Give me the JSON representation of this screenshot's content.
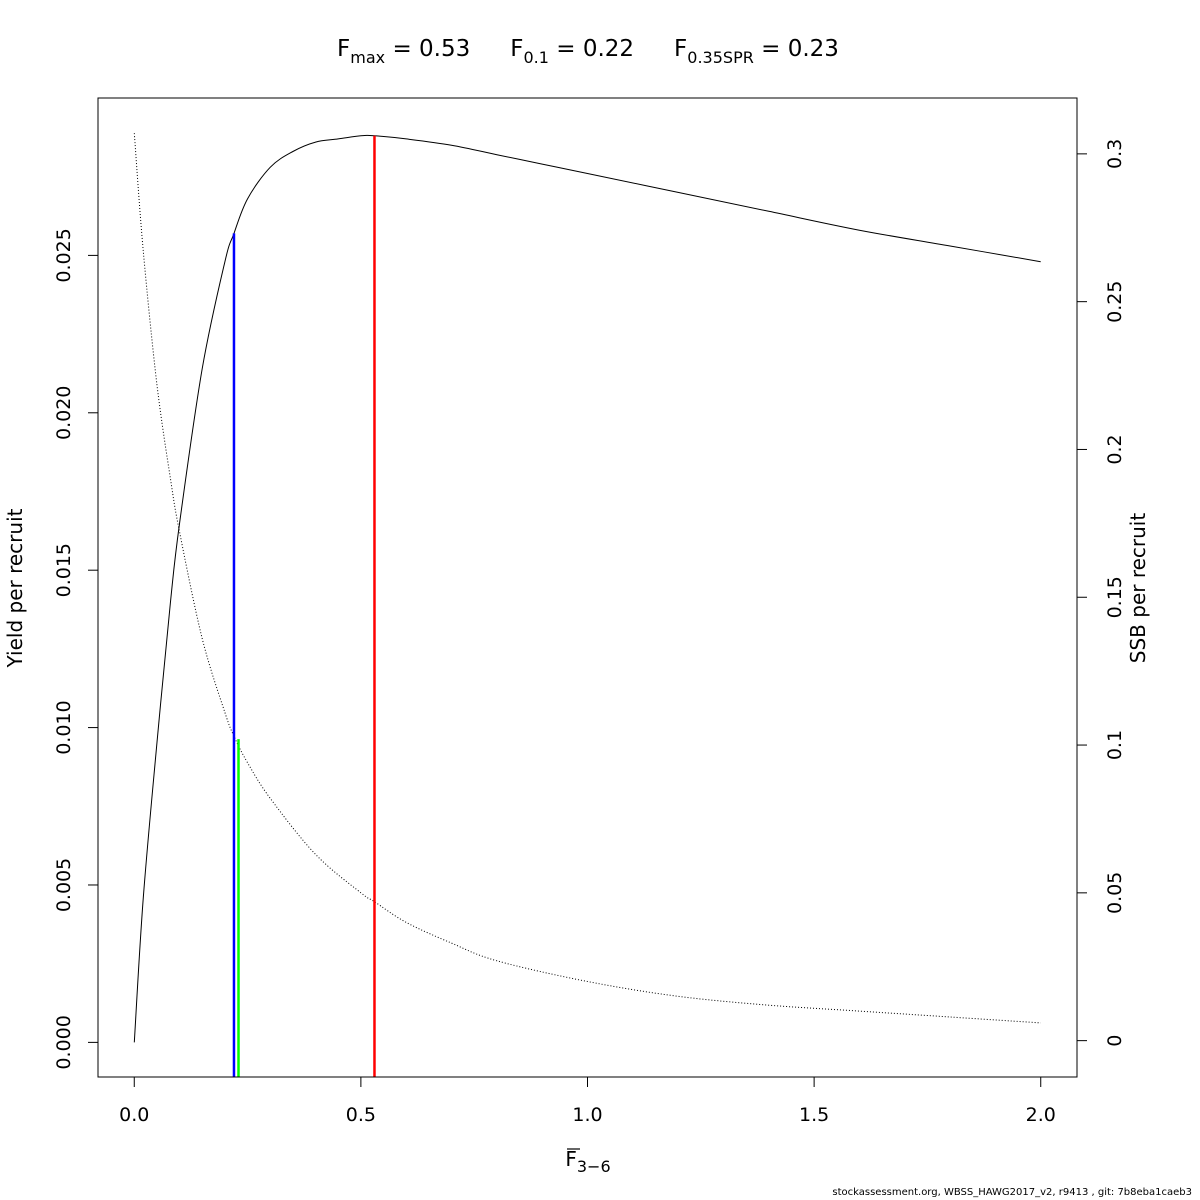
{
  "title": {
    "fmax": {
      "main": "F",
      "sub": "max",
      "value": " = 0.53"
    },
    "f01": {
      "main": "F",
      "sub": "0.1",
      "value": " = 0.22"
    },
    "f035": {
      "main": "F",
      "sub": "0.35SPR",
      "value": " = 0.23"
    }
  },
  "footer": "stockassessment.org, WBSS_HAWG2017_v2, r9413 , git: 7b8eba1caeb3",
  "chart_data": {
    "type": "line",
    "x_label": {
      "main": "F",
      "sub": "3−6",
      "overline": true
    },
    "y_label_left": "Yield per recruit",
    "y_label_right": "SSB per recruit",
    "x_range": [
      -0.08,
      2.08
    ],
    "y_left_range": [
      -0.0011,
      0.03
    ],
    "y_right_range": [
      -0.0123,
      0.3189
    ],
    "x_ticks": [
      0,
      0.5,
      1,
      1.5,
      2
    ],
    "x_tick_labels": [
      "0.0",
      "0.5",
      "1.0",
      "1.5",
      "2.0"
    ],
    "y_left_ticks": [
      0,
      0.005,
      0.01,
      0.015,
      0.02,
      0.025
    ],
    "y_left_tick_labels": [
      "0.000",
      "0.005",
      "0.010",
      "0.015",
      "0.020",
      "0.025"
    ],
    "y_right_ticks": [
      0,
      0.05,
      0.1,
      0.15,
      0.2,
      0.25,
      0.3
    ],
    "y_right_tick_labels": [
      "0",
      "0.05",
      "0.1",
      "0.15",
      "0.2",
      "0.25",
      "0.3"
    ],
    "series": [
      {
        "axis": "left",
        "style": "solid",
        "color": "#000000",
        "x": [
          0,
          0.02,
          0.05,
          0.08,
          0.1,
          0.15,
          0.2,
          0.22,
          0.25,
          0.3,
          0.35,
          0.4,
          0.45,
          0.5,
          0.53,
          0.6,
          0.7,
          0.8,
          0.9,
          1.0,
          1.2,
          1.4,
          1.6,
          1.8,
          2.0
        ],
        "y": [
          0,
          0.0046,
          0.0095,
          0.014,
          0.0165,
          0.0214,
          0.0248,
          0.0257,
          0.0268,
          0.0278,
          0.0283,
          0.0286,
          0.0287,
          0.0288,
          0.0288,
          0.0287,
          0.0285,
          0.0282,
          0.0279,
          0.0276,
          0.027,
          0.0264,
          0.0258,
          0.0253,
          0.0248
        ]
      },
      {
        "axis": "right",
        "style": "dotted",
        "color": "#000000",
        "x": [
          0,
          0.02,
          0.05,
          0.08,
          0.1,
          0.15,
          0.2,
          0.22,
          0.25,
          0.3,
          0.4,
          0.5,
          0.53,
          0.6,
          0.7,
          0.8,
          1.0,
          1.2,
          1.4,
          1.6,
          1.8,
          2.0
        ],
        "y": [
          0.307,
          0.267,
          0.222,
          0.19,
          0.172,
          0.136,
          0.111,
          0.103,
          0.094,
          0.082,
          0.063,
          0.05,
          0.047,
          0.04,
          0.033,
          0.027,
          0.02,
          0.015,
          0.012,
          0.01,
          0.008,
          0.006
        ]
      }
    ],
    "reference_lines": [
      {
        "name": "Fmax",
        "x": 0.53,
        "axis": "left",
        "y_top": 0.0288,
        "color": "#ff0000"
      },
      {
        "name": "F0.1",
        "x": 0.22,
        "axis": "left",
        "y_top": 0.0257,
        "color": "#0000ff"
      },
      {
        "name": "F0.35SPR",
        "x": 0.23,
        "axis": "right",
        "y_top": 0.102,
        "color": "#00ff00"
      }
    ],
    "grid": false,
    "legend": "none"
  }
}
